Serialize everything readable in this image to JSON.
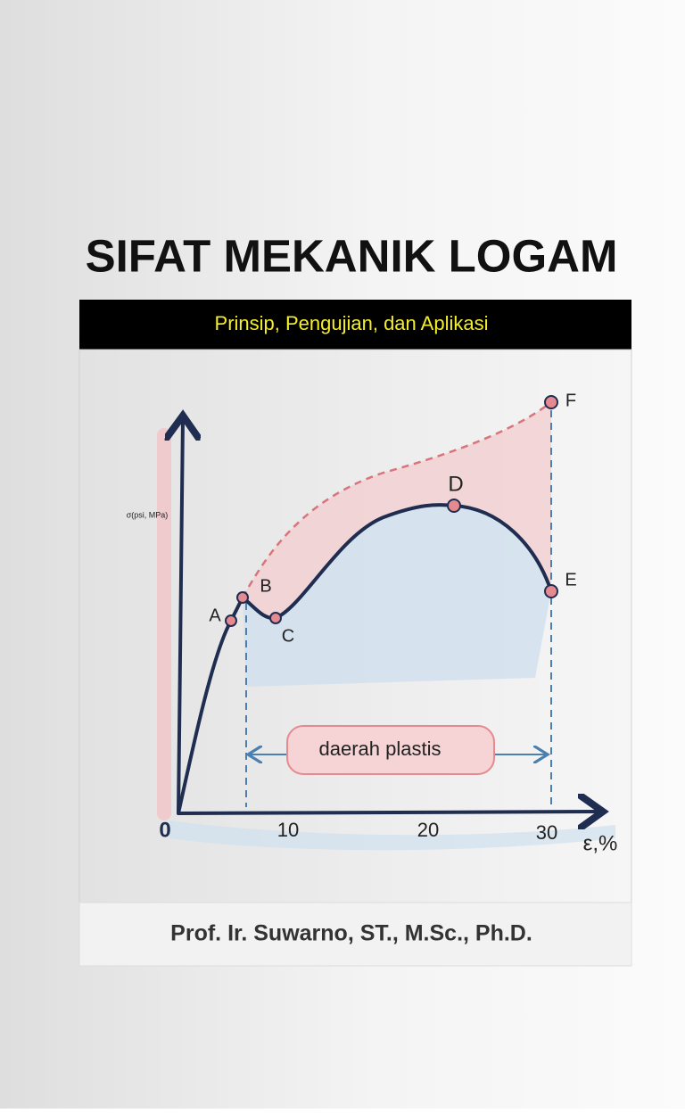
{
  "title": "SIFAT MEKANIK LOGAM",
  "subtitle": "Prinsip, Pengujian, dan Aplikasi",
  "illustration": {
    "y_label": "σ(psi, MPa)",
    "x_label": "ε,%",
    "x_ticks": [
      "0",
      "10",
      "20",
      "30"
    ],
    "points": [
      "A",
      "B",
      "C",
      "D",
      "E",
      "F"
    ],
    "region_label": "daerah plastis"
  },
  "author": "Prof. Ir. Suwarno, ST., M.Sc., Ph.D."
}
